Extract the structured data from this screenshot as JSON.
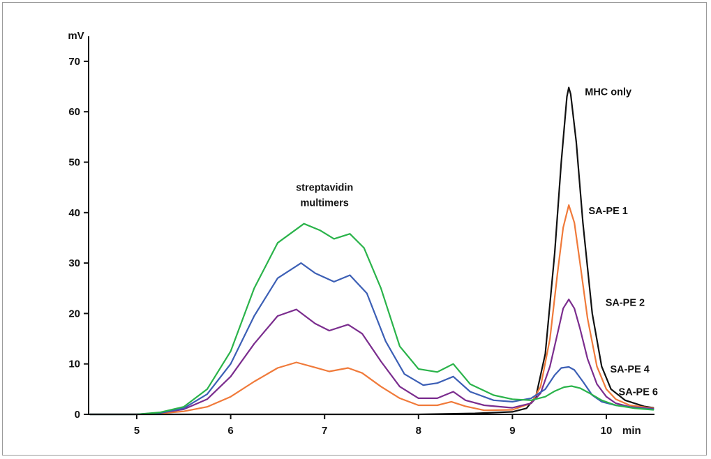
{
  "chart_data": {
    "type": "line",
    "xlabel": "min",
    "ylabel": "mV",
    "xlim": [
      4.5,
      10.5
    ],
    "ylim": [
      0,
      72
    ],
    "xticks": [
      5,
      6,
      7,
      8,
      9,
      10
    ],
    "yticks": [
      0,
      10,
      20,
      30,
      40,
      50,
      60,
      70
    ],
    "grid": false,
    "legend": "none",
    "annotations": [
      {
        "text": "streptavidin",
        "x": 7.0,
        "y": 45
      },
      {
        "text": "multimers",
        "x": 7.0,
        "y": 42
      },
      {
        "text": "MHC only",
        "x": 10.02,
        "y": 64
      },
      {
        "text": "SA-PE 1",
        "x": 10.02,
        "y": 40.4
      },
      {
        "text": "SA-PE 2",
        "x": 10.2,
        "y": 22.2
      },
      {
        "text": "SA-PE 4",
        "x": 10.25,
        "y": 9
      },
      {
        "text": "SA-PE 6",
        "x": 10.34,
        "y": 4.5
      }
    ],
    "series": [
      {
        "name": "MHC only",
        "color": "#111111",
        "x": [
          4.5,
          5.0,
          6.0,
          7.0,
          8.0,
          8.6,
          9.0,
          9.15,
          9.25,
          9.35,
          9.45,
          9.52,
          9.58,
          9.6,
          9.62,
          9.68,
          9.75,
          9.85,
          9.95,
          10.05,
          10.2,
          10.4,
          10.5
        ],
        "values": [
          0,
          0,
          0,
          0,
          0,
          0.2,
          0.5,
          1.2,
          3.5,
          12,
          32,
          50,
          63,
          64.8,
          63.5,
          54,
          38,
          20,
          9.5,
          5.0,
          2.8,
          1.6,
          1.3
        ]
      },
      {
        "name": "SA-PE 1",
        "color": "#f07a3a",
        "x": [
          4.5,
          5.0,
          5.25,
          5.5,
          5.75,
          6.0,
          6.25,
          6.5,
          6.7,
          6.9,
          7.05,
          7.25,
          7.4,
          7.6,
          7.8,
          8.0,
          8.2,
          8.35,
          8.5,
          8.7,
          9.0,
          9.2,
          9.3,
          9.4,
          9.48,
          9.54,
          9.6,
          9.66,
          9.72,
          9.8,
          9.9,
          10.0,
          10.1,
          10.25,
          10.5
        ],
        "values": [
          0,
          0,
          0.2,
          0.6,
          1.5,
          3.5,
          6.5,
          9.2,
          10.3,
          9.3,
          8.5,
          9.2,
          8.2,
          5.5,
          3.2,
          1.8,
          1.8,
          2.5,
          1.6,
          0.8,
          0.9,
          2.2,
          5.5,
          15,
          28,
          37,
          41.5,
          38,
          30,
          19,
          9.5,
          5.0,
          3.0,
          1.8,
          1.2
        ]
      },
      {
        "name": "SA-PE 2",
        "color": "#7b2d8e",
        "x": [
          4.5,
          5.0,
          5.25,
          5.5,
          5.75,
          6.0,
          6.25,
          6.5,
          6.7,
          6.9,
          7.05,
          7.25,
          7.4,
          7.6,
          7.8,
          8.0,
          8.2,
          8.37,
          8.5,
          8.7,
          9.0,
          9.2,
          9.3,
          9.4,
          9.48,
          9.54,
          9.6,
          9.66,
          9.72,
          9.8,
          9.9,
          10.0,
          10.1,
          10.25,
          10.5
        ],
        "values": [
          0,
          0,
          0.3,
          1.0,
          3.0,
          7.5,
          14,
          19.5,
          20.8,
          18,
          16.6,
          17.8,
          16.0,
          10.5,
          5.5,
          3.2,
          3.2,
          4.5,
          2.8,
          1.8,
          1.3,
          2.2,
          4.2,
          9.5,
          16,
          21,
          22.8,
          21,
          17,
          11,
          6.0,
          3.5,
          2.2,
          1.5,
          1.1
        ]
      },
      {
        "name": "SA-PE 4",
        "color": "#3c5fb5",
        "x": [
          4.5,
          5.0,
          5.25,
          5.5,
          5.75,
          6.0,
          6.25,
          6.5,
          6.75,
          6.9,
          7.1,
          7.27,
          7.45,
          7.65,
          7.85,
          8.05,
          8.2,
          8.37,
          8.55,
          8.8,
          9.0,
          9.2,
          9.35,
          9.45,
          9.52,
          9.6,
          9.66,
          9.75,
          9.85,
          9.95,
          10.1,
          10.3,
          10.5
        ],
        "values": [
          0,
          0,
          0.3,
          1.2,
          4.0,
          10,
          19.5,
          27,
          30,
          28,
          26.3,
          27.6,
          24,
          14.5,
          8.0,
          5.8,
          6.2,
          7.5,
          4.5,
          2.8,
          2.5,
          3.2,
          5.0,
          7.8,
          9.2,
          9.4,
          8.8,
          6.5,
          3.8,
          2.5,
          1.8,
          1.3,
          1.0
        ]
      },
      {
        "name": "SA-PE 6",
        "color": "#2ab34a",
        "x": [
          4.5,
          5.0,
          5.25,
          5.5,
          5.75,
          6.0,
          6.25,
          6.5,
          6.78,
          6.95,
          7.1,
          7.27,
          7.42,
          7.6,
          7.8,
          8.0,
          8.2,
          8.37,
          8.55,
          8.8,
          9.0,
          9.2,
          9.35,
          9.45,
          9.55,
          9.63,
          9.72,
          9.82,
          9.95,
          10.1,
          10.3,
          10.5
        ],
        "values": [
          0,
          0,
          0.4,
          1.5,
          5.0,
          12.5,
          25,
          34,
          37.8,
          36.5,
          34.8,
          35.8,
          33,
          25,
          13.5,
          9.0,
          8.4,
          10.0,
          6.0,
          3.8,
          3.0,
          2.8,
          3.5,
          4.6,
          5.4,
          5.6,
          5.2,
          4.2,
          2.8,
          1.8,
          1.2,
          0.9
        ]
      }
    ]
  }
}
